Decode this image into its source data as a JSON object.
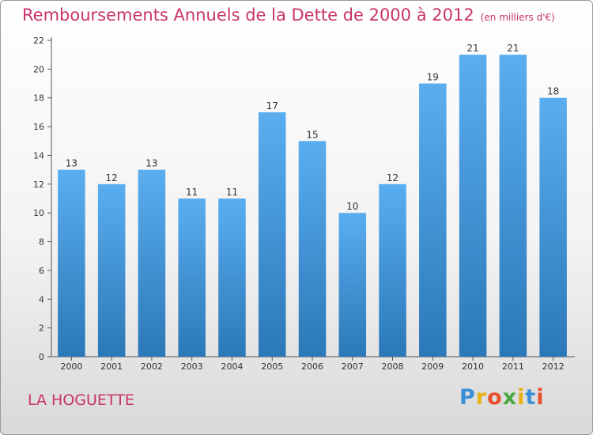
{
  "header": {
    "title": "Remboursements Annuels de la Dette de 2000 à 2012",
    "unit": "(en milliers d'€)"
  },
  "footer": {
    "place": "LA HOGUETTE",
    "logo_letters": [
      "P",
      "r",
      "o",
      "x",
      "i",
      "t",
      "i"
    ],
    "logo_colors": [
      "#3b8fd6",
      "#e8b210",
      "#e84f2a",
      "#4aa83e",
      "#e8b210",
      "#3b8fd6",
      "#e84f2a"
    ]
  },
  "colors": {
    "bar_top": "#5aaef0",
    "bar_bottom": "#2b78b8",
    "axis": "#555555",
    "title": "#c8336b"
  },
  "chart_data": {
    "type": "bar",
    "categories": [
      "2000",
      "2001",
      "2002",
      "2003",
      "2004",
      "2005",
      "2006",
      "2007",
      "2008",
      "2009",
      "2010",
      "2011",
      "2012"
    ],
    "values": [
      13,
      12,
      13,
      11,
      11,
      17,
      15,
      10,
      12,
      19,
      21,
      21,
      18
    ],
    "yticks": [
      0,
      2,
      4,
      6,
      8,
      10,
      12,
      14,
      16,
      18,
      20,
      22
    ],
    "ylim": [
      0,
      22
    ],
    "grid": false
  }
}
